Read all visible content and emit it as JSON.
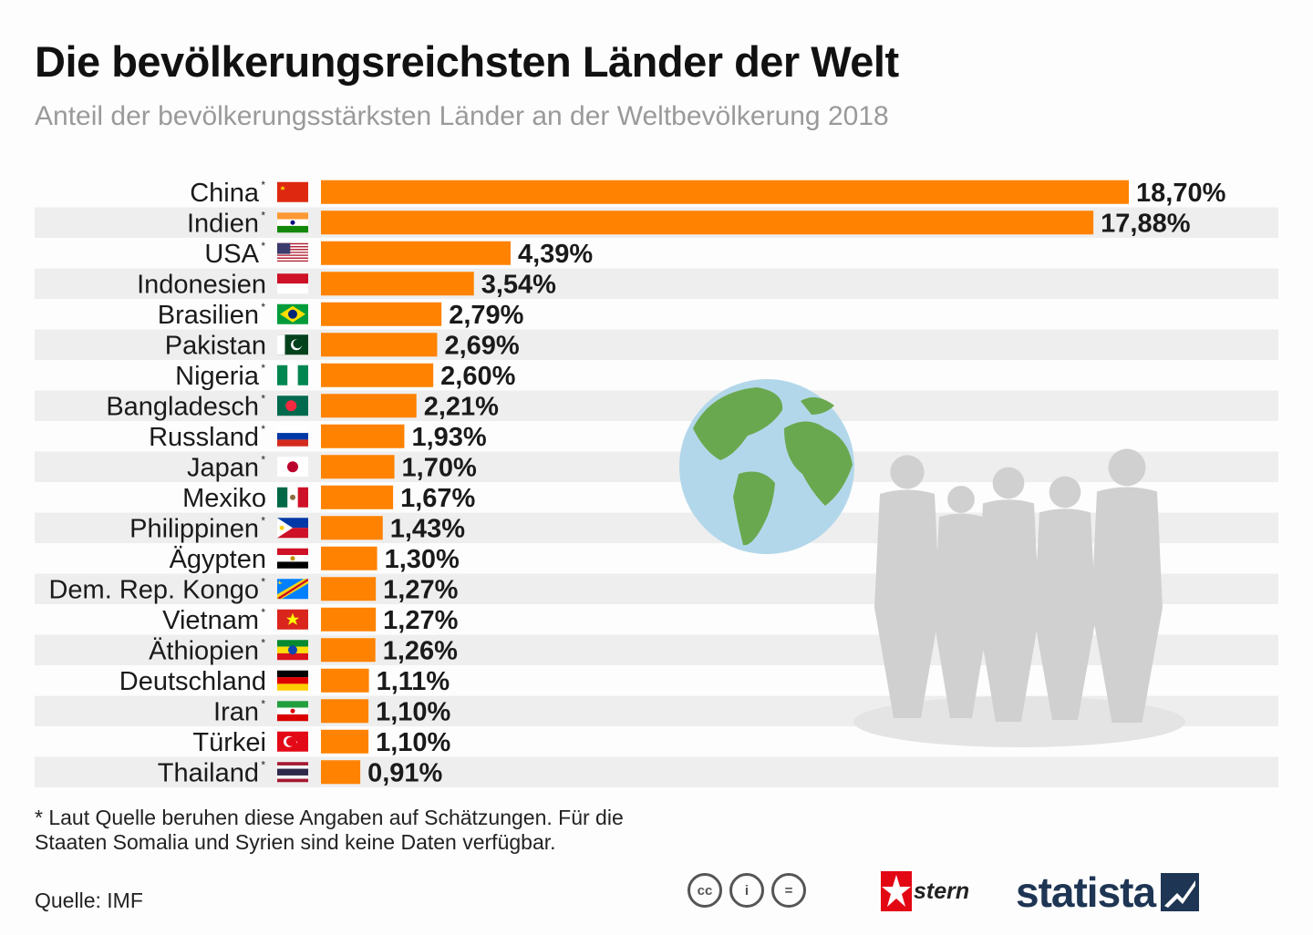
{
  "title": "Die bevölkerungsreichsten Länder der Welt",
  "subtitle": "Anteil der bevölkerungsstärksten Länder an der Weltbevölkerung 2018",
  "footnote": "* Laut Quelle beruhen diese Angaben auf Schätzungen. Für die Staaten Somalia und Syrien sind keine Daten verfügbar.",
  "source": "Quelle: IMF",
  "logos": {
    "cc": [
      "cc",
      "i",
      "="
    ],
    "stern": "stern",
    "statista": "statista"
  },
  "colors": {
    "bar": "#ff8200",
    "stripe": "#eeeeee",
    "globe_ocean": "#b3d7ea",
    "globe_land": "#6aa84f",
    "silhouette": "#d0d0d0"
  },
  "chart_data": {
    "type": "bar",
    "orientation": "horizontal",
    "title": "Die bevölkerungsreichsten Länder der Welt",
    "subtitle": "Anteil der bevölkerungsstärksten Länder an der Weltbevölkerung 2018",
    "unit": "%",
    "xlim": [
      0,
      18.7
    ],
    "grid": false,
    "categories": [
      "China",
      "Indien",
      "USA",
      "Indonesien",
      "Brasilien",
      "Pakistan",
      "Nigeria",
      "Bangladesch",
      "Russland",
      "Japan",
      "Mexiko",
      "Philippinen",
      "Ägypten",
      "Dem. Rep. Kongo",
      "Vietnam",
      "Äthiopien",
      "Deutschland",
      "Iran",
      "Türkei",
      "Thailand"
    ],
    "values": [
      18.7,
      17.88,
      4.39,
      3.54,
      2.79,
      2.69,
      2.6,
      2.21,
      1.93,
      1.7,
      1.67,
      1.43,
      1.3,
      1.27,
      1.27,
      1.26,
      1.11,
      1.1,
      1.1,
      0.91
    ],
    "value_labels": [
      "18,70%",
      "17,88%",
      "4,39%",
      "3,54%",
      "2,79%",
      "2,69%",
      "2,60%",
      "2,21%",
      "1,93%",
      "1,70%",
      "1,67%",
      "1,43%",
      "1,30%",
      "1,27%",
      "1,27%",
      "1,26%",
      "1,11%",
      "1,10%",
      "1,10%",
      "0,91%"
    ],
    "estimated": [
      true,
      true,
      true,
      false,
      true,
      false,
      true,
      true,
      true,
      true,
      false,
      true,
      false,
      true,
      true,
      true,
      false,
      true,
      false,
      true
    ],
    "flags": [
      "flag-china",
      "flag-india",
      "flag-usa",
      "flag-indonesia",
      "flag-brazil",
      "flag-pakistan",
      "flag-nigeria",
      "flag-bangladesh",
      "flag-russia",
      "flag-japan",
      "flag-mexico",
      "flag-philippines",
      "flag-egypt",
      "flag-dr-congo",
      "flag-vietnam",
      "flag-ethiopia",
      "flag-germany",
      "flag-iran",
      "flag-turkey",
      "flag-thailand"
    ]
  }
}
